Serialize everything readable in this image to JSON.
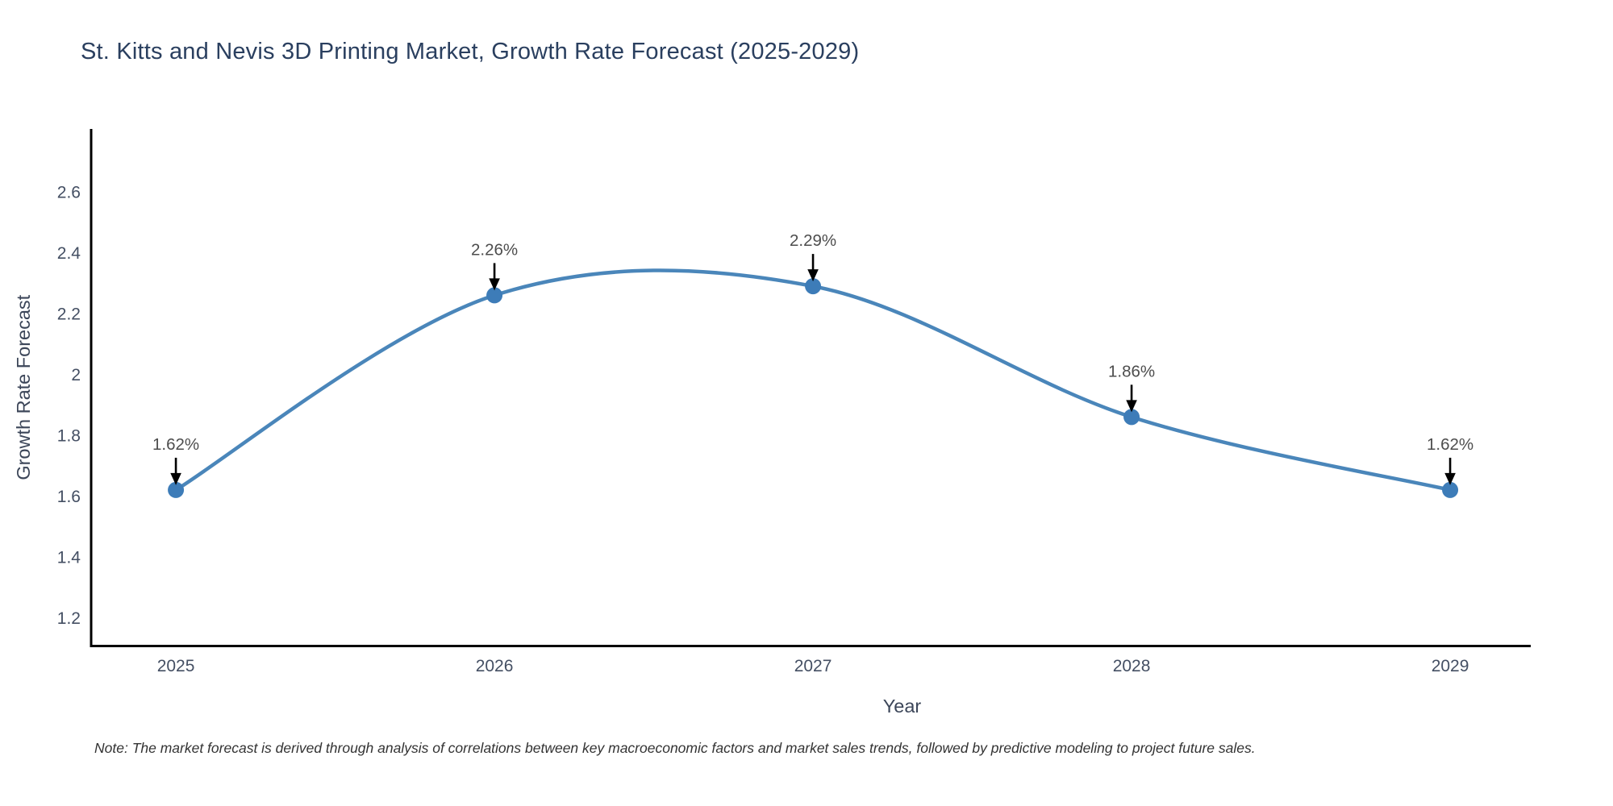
{
  "note": "Note: The market forecast is derived through analysis of correlations between key macroeconomic factors and market sales trends, followed by predictive modeling to project future sales.",
  "chart_data": {
    "type": "line",
    "title": "St. Kitts and Nevis 3D Printing Market, Growth Rate Forecast (2025-2029)",
    "xlabel": "Year",
    "ylabel": "Growth Rate Forecast",
    "categories": [
      2025,
      2026,
      2027,
      2028,
      2029
    ],
    "values": [
      1.62,
      2.26,
      2.29,
      1.86,
      1.62
    ],
    "point_labels": [
      "1.62%",
      "2.26%",
      "2.29%",
      "1.86%",
      "1.62%"
    ],
    "xticks": [
      "2025",
      "2026",
      "2027",
      "2028",
      "2029"
    ],
    "yticks": [
      1.2,
      1.4,
      1.6,
      1.8,
      2,
      2.2,
      2.4,
      2.6
    ],
    "ytick_labels": [
      "1.2",
      "1.4",
      "1.6",
      "1.8",
      "2",
      "2.2",
      "2.4",
      "2.6"
    ],
    "xlim": [
      2024.734,
      2029.253
    ],
    "ylim": [
      1.107,
      2.807
    ],
    "line_shape": "spline",
    "grid": false,
    "legend_position": "none",
    "annotation_style": "arrow-down-to-point",
    "colors": {
      "line": "#4a86ba",
      "marker": "#3d7cb8",
      "axis_line": "#000000",
      "title_text": "#2a3f5f",
      "tick_text": "#444f63",
      "axis_title_text": "#3c4659",
      "annotation_text": "#4d4d4d",
      "arrow": "#000000",
      "note_text": "#333333",
      "background": "#ffffff"
    }
  }
}
